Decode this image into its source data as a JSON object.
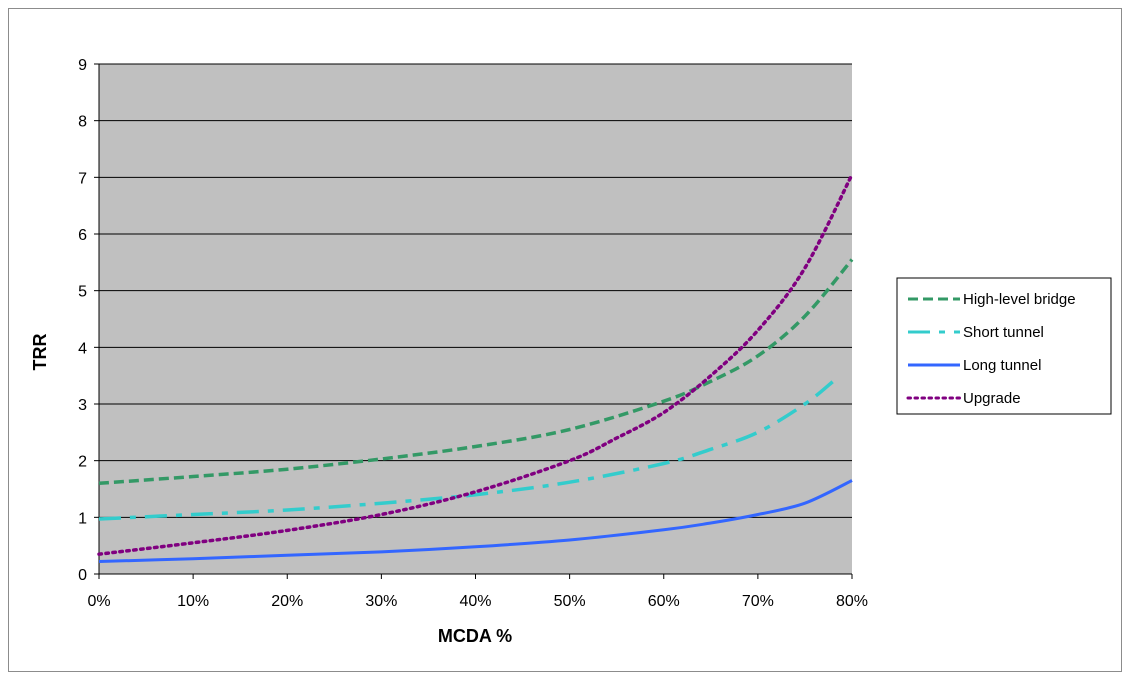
{
  "chart_data": {
    "type": "line",
    "title": "",
    "xlabel": "MCDA %",
    "ylabel": "TRR",
    "xlim": [
      0,
      80
    ],
    "ylim": [
      0,
      9
    ],
    "x_ticks": [
      0,
      10,
      20,
      30,
      40,
      50,
      60,
      70,
      80
    ],
    "x_tick_labels": [
      "0%",
      "10%",
      "20%",
      "30%",
      "40%",
      "50%",
      "60%",
      "70%",
      "80%"
    ],
    "y_ticks": [
      0,
      1,
      2,
      3,
      4,
      5,
      6,
      7,
      8,
      9
    ],
    "y_tick_labels": [
      "0",
      "1",
      "2",
      "3",
      "4",
      "5",
      "6",
      "7",
      "8",
      "9"
    ],
    "grid": "horizontal",
    "plot_background": "#c0c0c0",
    "legend_position": "right",
    "series": [
      {
        "name": "High-level bridge",
        "color": "#339966",
        "dash": "dashed",
        "x": [
          0,
          10,
          20,
          30,
          40,
          50,
          60,
          65,
          70,
          75,
          80
        ],
        "y": [
          1.6,
          1.72,
          1.85,
          2.03,
          2.25,
          2.55,
          3.05,
          3.4,
          3.85,
          4.55,
          5.55
        ]
      },
      {
        "name": "Short tunnel",
        "color": "#33cccc",
        "dash": "dashdot",
        "x": [
          0,
          10,
          20,
          30,
          40,
          50,
          60,
          65,
          70,
          75,
          78
        ],
        "y": [
          0.97,
          1.05,
          1.13,
          1.25,
          1.4,
          1.62,
          1.95,
          2.2,
          2.5,
          3.0,
          3.4
        ]
      },
      {
        "name": "Long tunnel",
        "color": "#3366ff",
        "dash": "solid",
        "x": [
          0,
          10,
          20,
          30,
          40,
          50,
          60,
          65,
          70,
          75,
          80
        ],
        "y": [
          0.22,
          0.27,
          0.33,
          0.39,
          0.48,
          0.6,
          0.78,
          0.9,
          1.05,
          1.25,
          1.65
        ]
      },
      {
        "name": "Upgrade",
        "color": "#800080",
        "dash": "dotted",
        "x": [
          0,
          10,
          20,
          30,
          40,
          50,
          55,
          60,
          65,
          70,
          75,
          80
        ],
        "y": [
          0.35,
          0.55,
          0.77,
          1.05,
          1.45,
          2.0,
          2.4,
          2.85,
          3.5,
          4.3,
          5.4,
          7.05
        ]
      }
    ]
  }
}
